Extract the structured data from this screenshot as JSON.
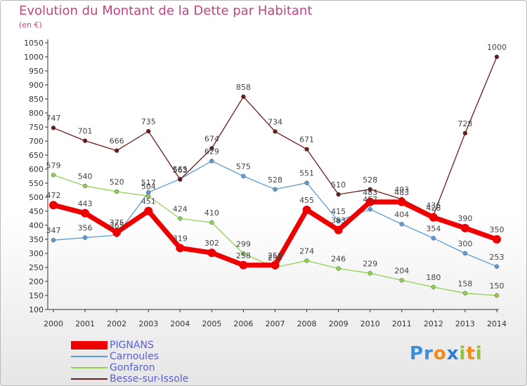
{
  "chart_data": {
    "type": "line",
    "title": "Evolution du Montant de la Dette par Habitant",
    "subtitle": "(en €)",
    "x": [
      "2000",
      "2001",
      "2002",
      "2003",
      "2004",
      "2005",
      "2006",
      "2007",
      "2008",
      "2009",
      "2010",
      "2011",
      "2012",
      "2013",
      "2014"
    ],
    "ylim": [
      100,
      1050
    ],
    "yticks": [
      100,
      150,
      200,
      250,
      300,
      350,
      400,
      450,
      500,
      550,
      600,
      650,
      700,
      750,
      800,
      850,
      900,
      950,
      1000,
      1050
    ],
    "grid": false,
    "legend_position": "bottom-left",
    "series": [
      {
        "name": "PIGNANS",
        "color": "#ee0000",
        "values": [
          472,
          443,
          375,
          451,
          319,
          302,
          258,
          258,
          455,
          383,
          483,
          483,
          428,
          390,
          350
        ]
      },
      {
        "name": "Carnoules",
        "color": "#5b9bd5",
        "values": [
          347,
          356,
          365,
          517,
          565,
          629,
          575,
          528,
          551,
          415,
          457,
          404,
          354,
          300,
          253
        ]
      },
      {
        "name": "Gonfaron",
        "color": "#8fd14f",
        "values": [
          579,
          540,
          520,
          504,
          424,
          410,
          299,
          250,
          274,
          246,
          229,
          204,
          180,
          158,
          150
        ]
      },
      {
        "name": "Besse-sur-Issole",
        "color": "#6b1b1b",
        "values": [
          747,
          701,
          666,
          735,
          563,
          674,
          858,
          734,
          671,
          510,
          528,
          493,
          436,
          728,
          1000
        ]
      }
    ],
    "data_labels": [
      [
        "472",
        "443",
        "375",
        "451",
        "319",
        "302",
        "258",
        "258",
        "455",
        "383",
        "483",
        "483",
        "428",
        "390",
        "350"
      ],
      [
        "347",
        "356",
        "365",
        "517",
        "565",
        "629",
        "575",
        "528",
        "551",
        "415",
        "457",
        "404",
        "354",
        "300",
        "253"
      ],
      [
        "579",
        "540",
        "520",
        "504",
        "424",
        "410",
        "299",
        "250",
        "274",
        "246",
        "229",
        "204",
        "180",
        "158",
        "150"
      ],
      [
        "747",
        "701",
        "666",
        "735",
        "563",
        "674",
        "858",
        "734",
        "671",
        "510",
        "528",
        "493",
        "436",
        "728",
        "1000"
      ]
    ]
  },
  "legend": {
    "items": [
      "PIGNANS",
      "Carnoules",
      "Gonfaron",
      "Besse-sur-Issole"
    ]
  },
  "logo": {
    "letters": [
      "P",
      "r",
      "o",
      "x",
      "i",
      "t",
      "i"
    ],
    "colors": [
      "#3a8fd6",
      "#3a8fd6",
      "#f08a1c",
      "#2e7dd1",
      "#8cc43a",
      "#f08a1c",
      "#8cc43a"
    ]
  }
}
